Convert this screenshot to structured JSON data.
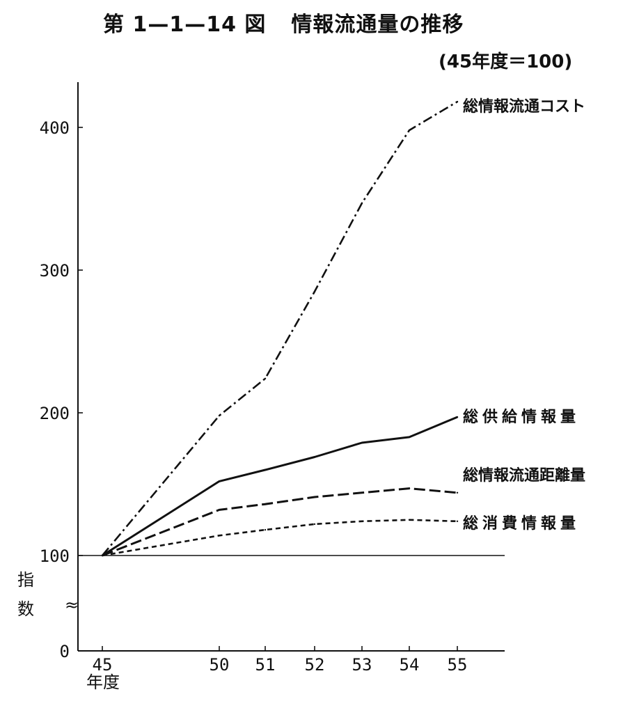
{
  "chart_data": {
    "type": "line",
    "title": "第 1—1—14 図",
    "subtitle_main": "情報流通量の推移",
    "subtitle": "(45年度＝100)",
    "ylabel": "指数",
    "xlabel": "年度",
    "x": [
      "45",
      "50",
      "51",
      "52",
      "53",
      "54",
      "55"
    ],
    "yticks": [
      "0",
      "100",
      "200",
      "300",
      "400"
    ],
    "ylim": [
      0,
      430
    ],
    "axis_break": "≈",
    "series": [
      {
        "name": "総情報流通コスト",
        "style": "dash-dot",
        "values": [
          100,
          198,
          224,
          285,
          347,
          398,
          418
        ]
      },
      {
        "name": "総供給情報量",
        "style": "solid",
        "values": [
          100,
          152,
          160,
          169,
          179,
          183,
          197
        ]
      },
      {
        "name": "総情報流通距離量",
        "style": "long-dash",
        "values": [
          100,
          132,
          136,
          141,
          144,
          147,
          144
        ]
      },
      {
        "name": "総消費情報量",
        "style": "short-dash",
        "values": [
          100,
          114,
          118,
          122,
          124,
          125,
          124
        ]
      }
    ],
    "baseline": 100,
    "line_color": "#111111"
  }
}
